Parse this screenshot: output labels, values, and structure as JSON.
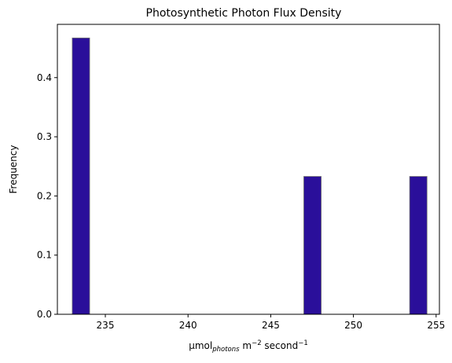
{
  "chart_data": {
    "type": "bar",
    "title": "Photosynthetic Photon Flux Density",
    "xlabel": {
      "base": "µmol",
      "sub": "photons",
      "mid": " m",
      "sup1": "−2",
      "tail": " second",
      "sup2": "−1"
    },
    "ylabel": "Frequency",
    "xlim": [
      232.1,
      255.2
    ],
    "ylim": [
      0,
      0.49
    ],
    "xticks": [
      235,
      240,
      245,
      250,
      255
    ],
    "yticks": [
      0.0,
      0.1,
      0.2,
      0.3,
      0.4
    ],
    "ytick_labels": [
      "0.0",
      "0.1",
      "0.2",
      "0.3",
      "0.4"
    ],
    "bar_color": "#2a0f9a",
    "bar_edge_color": "#6f6f6f",
    "bars": [
      {
        "x0": 233.0,
        "x1": 234.05,
        "value": 0.467
      },
      {
        "x0": 247.0,
        "x1": 248.05,
        "value": 0.233
      },
      {
        "x0": 253.4,
        "x1": 254.45,
        "value": 0.233
      }
    ],
    "grid": false,
    "legend": "none"
  }
}
